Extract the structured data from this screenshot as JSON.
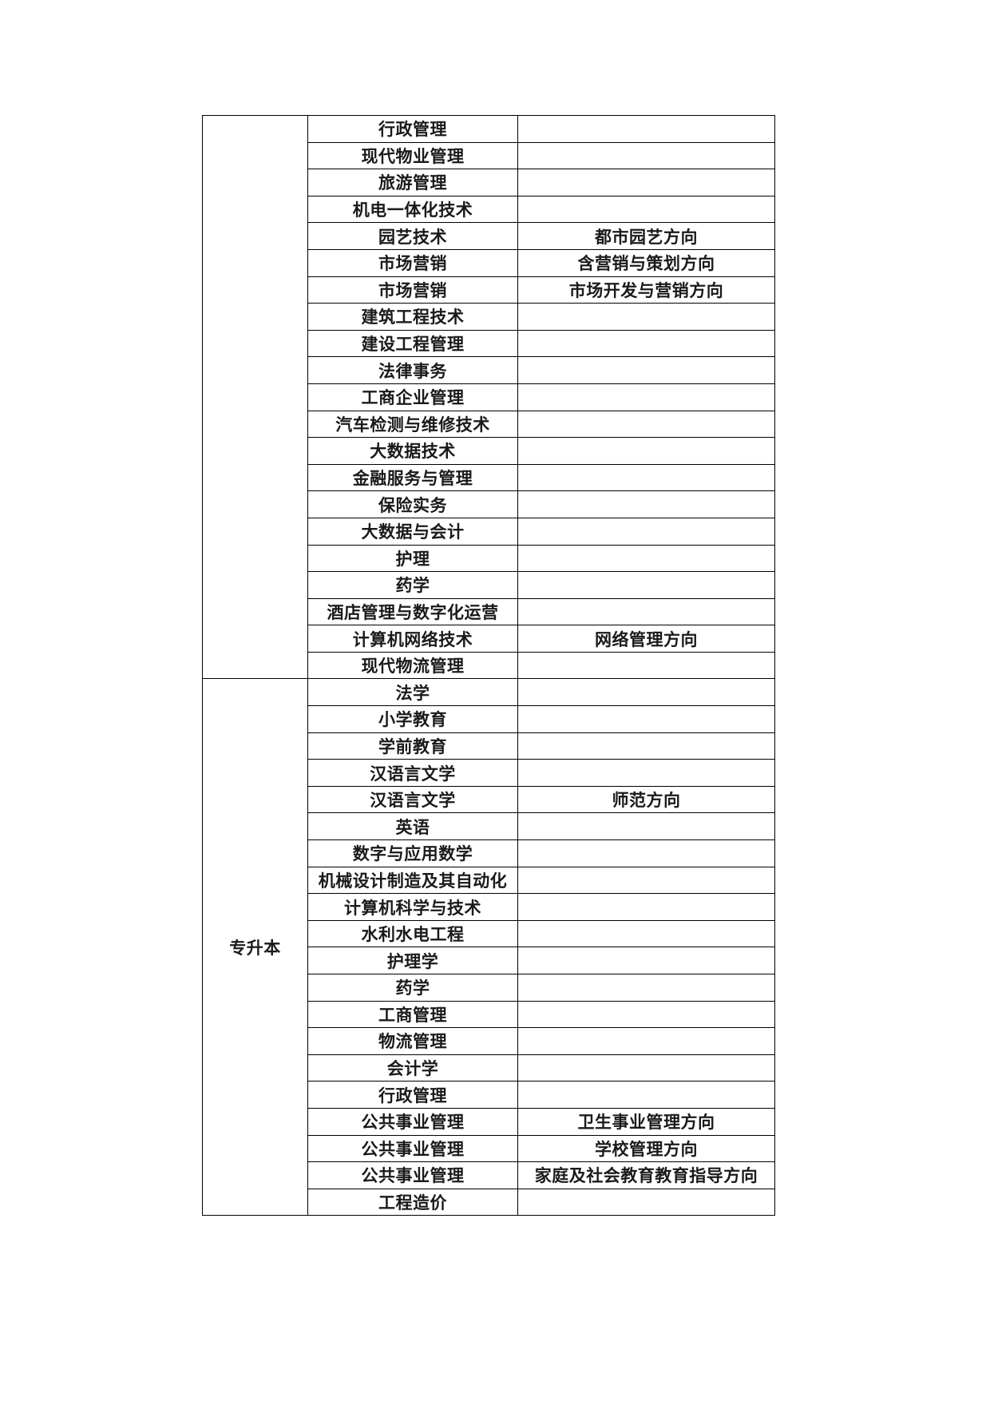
{
  "page": {
    "background_color": "#ffffff",
    "text_color": "#1a1a1a",
    "border_color": "#000000"
  },
  "table": {
    "columns": [
      "level",
      "major",
      "direction"
    ],
    "sections": [
      {
        "level_label": "",
        "rows": [
          {
            "major": "行政管理",
            "direction": ""
          },
          {
            "major": "现代物业管理",
            "direction": ""
          },
          {
            "major": "旅游管理",
            "direction": ""
          },
          {
            "major": "机电一体化技术",
            "direction": ""
          },
          {
            "major": "园艺技术",
            "direction": "都市园艺方向"
          },
          {
            "major": "市场营销",
            "direction": "含营销与策划方向"
          },
          {
            "major": "市场营销",
            "direction": "市场开发与营销方向"
          },
          {
            "major": "建筑工程技术",
            "direction": ""
          },
          {
            "major": "建设工程管理",
            "direction": ""
          },
          {
            "major": "法律事务",
            "direction": ""
          },
          {
            "major": "工商企业管理",
            "direction": ""
          },
          {
            "major": "汽车检测与维修技术",
            "direction": ""
          },
          {
            "major": "大数据技术",
            "direction": ""
          },
          {
            "major": "金融服务与管理",
            "direction": ""
          },
          {
            "major": "保险实务",
            "direction": ""
          },
          {
            "major": "大数据与会计",
            "direction": ""
          },
          {
            "major": "护理",
            "direction": ""
          },
          {
            "major": "药学",
            "direction": ""
          },
          {
            "major": "酒店管理与数字化运营",
            "direction": ""
          },
          {
            "major": "计算机网络技术",
            "direction": "网络管理方向"
          },
          {
            "major": "现代物流管理",
            "direction": ""
          }
        ]
      },
      {
        "level_label": "专升本",
        "rows": [
          {
            "major": "法学",
            "direction": ""
          },
          {
            "major": "小学教育",
            "direction": ""
          },
          {
            "major": "学前教育",
            "direction": ""
          },
          {
            "major": "汉语言文学",
            "direction": ""
          },
          {
            "major": "汉语言文学",
            "direction": "师范方向"
          },
          {
            "major": "英语",
            "direction": ""
          },
          {
            "major": "数字与应用数学",
            "direction": ""
          },
          {
            "major": "机械设计制造及其自动化",
            "direction": ""
          },
          {
            "major": "计算机科学与技术",
            "direction": ""
          },
          {
            "major": "水利水电工程",
            "direction": ""
          },
          {
            "major": "护理学",
            "direction": ""
          },
          {
            "major": "药学",
            "direction": ""
          },
          {
            "major": "工商管理",
            "direction": ""
          },
          {
            "major": "物流管理",
            "direction": ""
          },
          {
            "major": "会计学",
            "direction": ""
          },
          {
            "major": "行政管理",
            "direction": ""
          },
          {
            "major": "公共事业管理",
            "direction": "卫生事业管理方向"
          },
          {
            "major": "公共事业管理",
            "direction": "学校管理方向"
          },
          {
            "major": "公共事业管理",
            "direction": "家庭及社会教育教育指导方向"
          },
          {
            "major": "工程造价",
            "direction": ""
          }
        ]
      }
    ]
  }
}
